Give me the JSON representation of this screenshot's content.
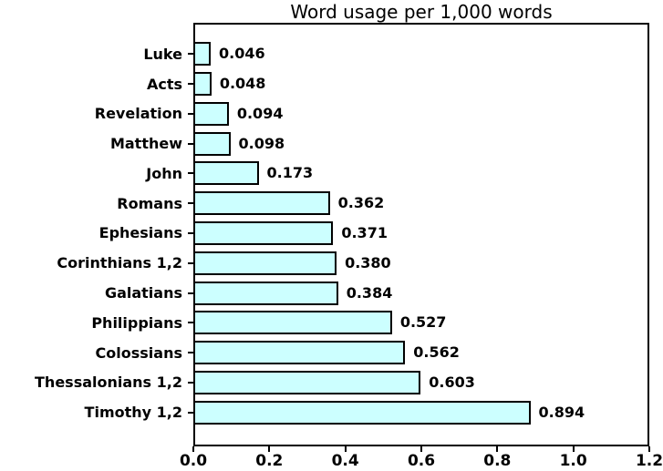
{
  "figure": {
    "background": "#ffffff",
    "text_color": "#000000"
  },
  "chart_data": {
    "type": "bar",
    "orientation": "horizontal",
    "title": "Word usage per 1,000 words",
    "categories": [
      "Luke",
      "Acts",
      "Revelation",
      "Matthew",
      "John",
      "Romans",
      "Ephesians",
      "Corinthians 1,2",
      "Galatians",
      "Philippians",
      "Colossians",
      "Thessalonians 1,2",
      "Timothy 1,2"
    ],
    "values": [
      0.046,
      0.048,
      0.094,
      0.098,
      0.173,
      0.362,
      0.371,
      0.38,
      0.384,
      0.527,
      0.562,
      0.603,
      0.894
    ],
    "value_labels": [
      "0.046",
      "0.048",
      "0.094",
      "0.098",
      "0.173",
      "0.362",
      "0.371",
      "0.380",
      "0.384",
      "0.527",
      "0.562",
      "0.603",
      "0.894"
    ],
    "xlabel": "",
    "ylabel": "",
    "xlim": [
      0.0,
      1.2
    ],
    "x_ticks": [
      "0.0",
      "0.2",
      "0.4",
      "0.6",
      "0.8",
      "1.0",
      "1.2"
    ],
    "grid": false,
    "legend": false,
    "bar_fill": "#ccffff",
    "bar_border": "#000000",
    "axis_color": "#000000"
  }
}
